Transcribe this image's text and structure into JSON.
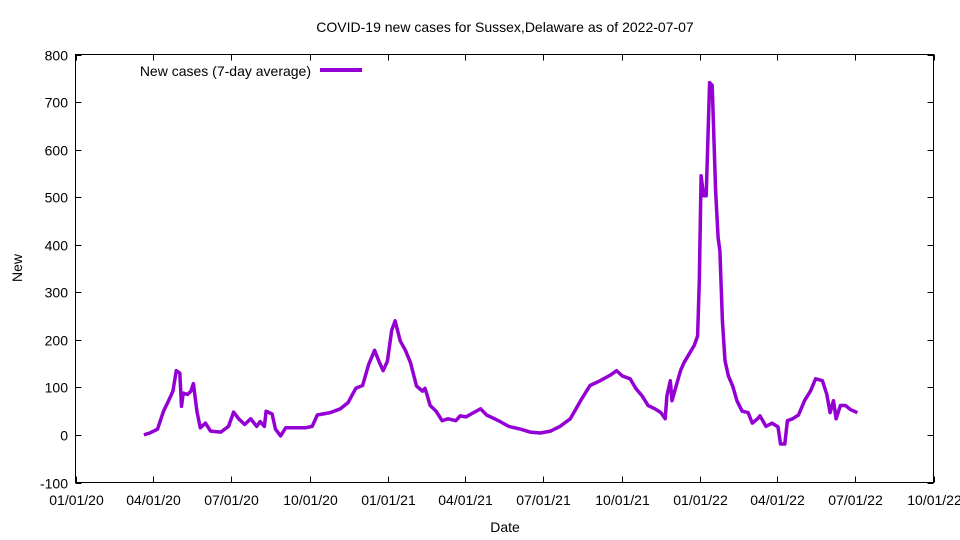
{
  "chart_data": {
    "type": "line",
    "title": "COVID-19 new cases for Sussex,Delaware as of 2022-07-07",
    "xlabel": "Date",
    "ylabel": "New",
    "ylim": [
      -100,
      800
    ],
    "xlim": [
      "2020-01-01",
      "2022-10-01"
    ],
    "yticks": [
      -100,
      0,
      100,
      200,
      300,
      400,
      500,
      600,
      700,
      800
    ],
    "xticks": [
      {
        "date": "2020-01-01",
        "label": "01/01/20"
      },
      {
        "date": "2020-04-01",
        "label": "04/01/20"
      },
      {
        "date": "2020-07-01",
        "label": "07/01/20"
      },
      {
        "date": "2020-10-01",
        "label": "10/01/20"
      },
      {
        "date": "2021-01-01",
        "label": "01/01/21"
      },
      {
        "date": "2021-04-01",
        "label": "04/01/21"
      },
      {
        "date": "2021-07-01",
        "label": "07/01/21"
      },
      {
        "date": "2021-10-01",
        "label": "10/01/21"
      },
      {
        "date": "2022-01-01",
        "label": "01/01/22"
      },
      {
        "date": "2022-04-01",
        "label": "04/01/22"
      },
      {
        "date": "2022-07-01",
        "label": "07/01/22"
      },
      {
        "date": "2022-10-01",
        "label": "10/01/22"
      }
    ],
    "grid": false,
    "legend_position": "top-left",
    "series": [
      {
        "name": "New cases (7-day average)",
        "color": "#9400D3",
        "points": [
          [
            "2020-03-21",
            0
          ],
          [
            "2020-03-29",
            5
          ],
          [
            "2020-04-06",
            12
          ],
          [
            "2020-04-13",
            50
          ],
          [
            "2020-04-19",
            72
          ],
          [
            "2020-04-24",
            92
          ],
          [
            "2020-04-28",
            135
          ],
          [
            "2020-05-02",
            130
          ],
          [
            "2020-05-04",
            60
          ],
          [
            "2020-05-06",
            88
          ],
          [
            "2020-05-11",
            85
          ],
          [
            "2020-05-15",
            92
          ],
          [
            "2020-05-18",
            108
          ],
          [
            "2020-05-22",
            50
          ],
          [
            "2020-05-26",
            15
          ],
          [
            "2020-06-01",
            25
          ],
          [
            "2020-06-07",
            8
          ],
          [
            "2020-06-19",
            6
          ],
          [
            "2020-06-28",
            18
          ],
          [
            "2020-07-04",
            48
          ],
          [
            "2020-07-10",
            34
          ],
          [
            "2020-07-17",
            22
          ],
          [
            "2020-07-24",
            34
          ],
          [
            "2020-07-31",
            18
          ],
          [
            "2020-08-04",
            28
          ],
          [
            "2020-08-09",
            18
          ],
          [
            "2020-08-11",
            50
          ],
          [
            "2020-08-18",
            44
          ],
          [
            "2020-08-22",
            12
          ],
          [
            "2020-08-28",
            -2
          ],
          [
            "2020-09-03",
            15
          ],
          [
            "2020-09-14",
            15
          ],
          [
            "2020-09-26",
            15
          ],
          [
            "2020-10-04",
            18
          ],
          [
            "2020-10-10",
            42
          ],
          [
            "2020-10-25",
            47
          ],
          [
            "2020-11-06",
            55
          ],
          [
            "2020-11-15",
            68
          ],
          [
            "2020-11-24",
            98
          ],
          [
            "2020-12-02",
            104
          ],
          [
            "2020-12-09",
            148
          ],
          [
            "2020-12-16",
            178
          ],
          [
            "2020-12-21",
            155
          ],
          [
            "2020-12-26",
            135
          ],
          [
            "2020-12-31",
            155
          ],
          [
            "2021-01-05",
            220
          ],
          [
            "2021-01-09",
            240
          ],
          [
            "2021-01-15",
            198
          ],
          [
            "2021-01-21",
            178
          ],
          [
            "2021-01-27",
            152
          ],
          [
            "2021-02-03",
            103
          ],
          [
            "2021-02-10",
            92
          ],
          [
            "2021-02-13",
            98
          ],
          [
            "2021-02-19",
            62
          ],
          [
            "2021-02-26",
            50
          ],
          [
            "2021-03-05",
            30
          ],
          [
            "2021-03-12",
            34
          ],
          [
            "2021-03-21",
            30
          ],
          [
            "2021-03-26",
            40
          ],
          [
            "2021-04-02",
            38
          ],
          [
            "2021-04-09",
            45
          ],
          [
            "2021-04-19",
            55
          ],
          [
            "2021-04-26",
            42
          ],
          [
            "2021-05-03",
            36
          ],
          [
            "2021-05-12",
            28
          ],
          [
            "2021-05-22",
            18
          ],
          [
            "2021-06-05",
            12
          ],
          [
            "2021-06-16",
            6
          ],
          [
            "2021-06-28",
            4
          ],
          [
            "2021-07-10",
            8
          ],
          [
            "2021-07-21",
            18
          ],
          [
            "2021-08-02",
            34
          ],
          [
            "2021-08-14",
            72
          ],
          [
            "2021-08-25",
            104
          ],
          [
            "2021-09-06",
            114
          ],
          [
            "2021-09-18",
            126
          ],
          [
            "2021-09-25",
            135
          ],
          [
            "2021-10-02",
            124
          ],
          [
            "2021-10-11",
            118
          ],
          [
            "2021-10-18",
            97
          ],
          [
            "2021-10-25",
            82
          ],
          [
            "2021-11-01",
            62
          ],
          [
            "2021-11-09",
            55
          ],
          [
            "2021-11-16",
            47
          ],
          [
            "2021-11-21",
            34
          ],
          [
            "2021-11-23",
            82
          ],
          [
            "2021-11-27",
            114
          ],
          [
            "2021-11-29",
            72
          ],
          [
            "2021-12-04",
            104
          ],
          [
            "2021-12-09",
            135
          ],
          [
            "2021-12-13",
            152
          ],
          [
            "2021-12-20",
            173
          ],
          [
            "2021-12-25",
            188
          ],
          [
            "2021-12-29",
            208
          ],
          [
            "2021-12-31",
            324
          ],
          [
            "2022-01-02",
            545
          ],
          [
            "2022-01-05",
            503
          ],
          [
            "2022-01-08",
            503
          ],
          [
            "2022-01-12",
            741
          ],
          [
            "2022-01-15",
            735
          ],
          [
            "2022-01-19",
            514
          ],
          [
            "2022-01-22",
            415
          ],
          [
            "2022-01-24",
            387
          ],
          [
            "2022-01-27",
            240
          ],
          [
            "2022-01-30",
            156
          ],
          [
            "2022-02-03",
            124
          ],
          [
            "2022-02-08",
            103
          ],
          [
            "2022-02-13",
            72
          ],
          [
            "2022-02-19",
            50
          ],
          [
            "2022-02-26",
            47
          ],
          [
            "2022-03-03",
            25
          ],
          [
            "2022-03-09",
            34
          ],
          [
            "2022-03-12",
            40
          ],
          [
            "2022-03-19",
            18
          ],
          [
            "2022-03-26",
            25
          ],
          [
            "2022-04-02",
            17
          ],
          [
            "2022-04-05",
            -19
          ],
          [
            "2022-04-10",
            -19
          ],
          [
            "2022-04-13",
            30
          ],
          [
            "2022-04-19",
            34
          ],
          [
            "2022-04-26",
            42
          ],
          [
            "2022-05-03",
            72
          ],
          [
            "2022-05-10",
            92
          ],
          [
            "2022-05-16",
            118
          ],
          [
            "2022-05-24",
            114
          ],
          [
            "2022-05-29",
            86
          ],
          [
            "2022-06-02",
            47
          ],
          [
            "2022-06-06",
            72
          ],
          [
            "2022-06-09",
            34
          ],
          [
            "2022-06-14",
            62
          ],
          [
            "2022-06-20",
            62
          ],
          [
            "2022-06-26",
            53
          ],
          [
            "2022-07-04",
            47
          ]
        ]
      }
    ]
  }
}
